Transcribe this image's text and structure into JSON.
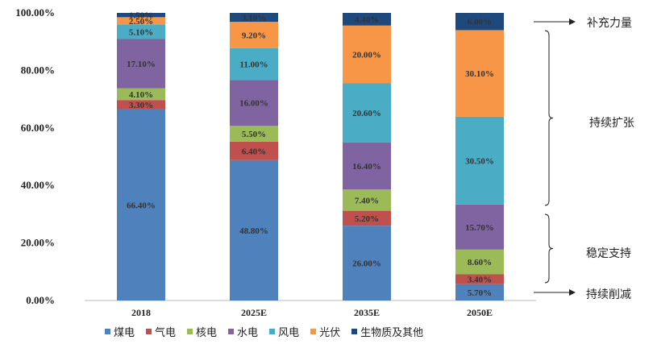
{
  "chart_data": {
    "type": "bar",
    "stacked": true,
    "categories": [
      "2018",
      "2025E",
      "2035E",
      "2050E"
    ],
    "ylim": [
      0,
      100
    ],
    "yticks": [
      "0.00%",
      "20.00%",
      "40.00%",
      "60.00%",
      "80.00%",
      "100.00%"
    ],
    "series": [
      {
        "name": "煤电",
        "color": "#4f81bd",
        "values": [
          66.4,
          48.8,
          26.0,
          5.7
        ],
        "labels": [
          "66.40%",
          "48.80%",
          "26.00%",
          "5.70%"
        ]
      },
      {
        "name": "气电",
        "color": "#c0504d",
        "values": [
          3.3,
          6.4,
          5.2,
          3.4
        ],
        "labels": [
          "3.30%",
          "6.40%",
          "5.20%",
          "3.40%"
        ]
      },
      {
        "name": "核电",
        "color": "#9bbb59",
        "values": [
          4.1,
          5.5,
          7.4,
          8.6
        ],
        "labels": [
          "4.10%",
          "5.50%",
          "7.40%",
          "8.60%"
        ]
      },
      {
        "name": "水电",
        "color": "#8064a2",
        "values": [
          17.1,
          16.0,
          16.4,
          15.7
        ],
        "labels": [
          "17.10%",
          "16.00%",
          "16.40%",
          "15.70%"
        ]
      },
      {
        "name": "风电",
        "color": "#4bacc6",
        "values": [
          5.1,
          11.0,
          20.6,
          30.5
        ],
        "labels": [
          "5.10%",
          "11.00%",
          "20.60%",
          "30.50%"
        ]
      },
      {
        "name": "光伏",
        "color": "#f79646",
        "values": [
          2.5,
          9.2,
          20.0,
          30.1
        ],
        "labels": [
          "2.50%",
          "9.20%",
          "20.00%",
          "30.10%"
        ]
      },
      {
        "name": "生物质及其他",
        "color": "#1f497d",
        "values": [
          1.5,
          3.1,
          4.4,
          6.0
        ],
        "labels": [
          "1.50%",
          "3.10%",
          "4.40%",
          "6.00%"
        ]
      }
    ],
    "legend_position": "bottom",
    "annotations": [
      "补充力量",
      "持续扩张",
      "稳定支持",
      "持续削减"
    ]
  }
}
